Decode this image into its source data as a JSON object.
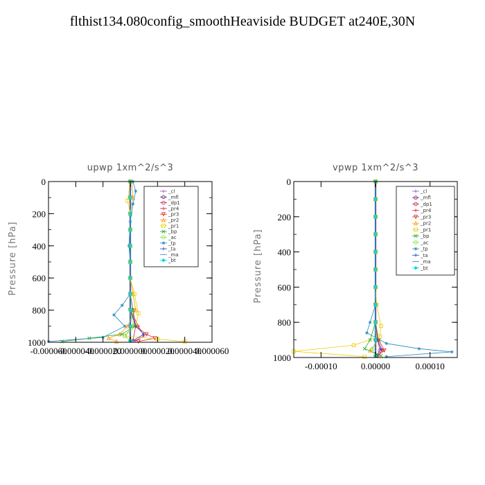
{
  "title": "flthist134.080config_smoothHeaviside  BUDGET at240E,30N",
  "chart_data": [
    {
      "type": "line",
      "title": "upwp   1xm^2/s^3",
      "ylabel": "Pressure [hPa]",
      "ylim": [
        1000,
        0
      ],
      "xlim": [
        -6e-05,
        6e-05
      ],
      "yticks": [
        0,
        200,
        400,
        600,
        800,
        1000
      ],
      "xticks": [
        -6e-05,
        -4e-05,
        -2e-05,
        0.0,
        2e-05,
        4e-05,
        6e-05
      ],
      "xticklabels": [
        "-0.000060",
        "-0.000040",
        "-0.000020",
        "0.000000",
        "0.000020",
        "0.000040",
        "0.000060"
      ],
      "legend_position": "upper-right",
      "series": [
        {
          "name": "_cl",
          "color": "#9955bb",
          "marker": "+",
          "x": [
            0,
            0,
            0,
            0,
            0,
            0,
            0,
            0,
            0,
            0,
            0
          ],
          "y": [
            0,
            100,
            200,
            300,
            400,
            500,
            600,
            700,
            800,
            900,
            990
          ]
        },
        {
          "name": "_mfl",
          "color": "#6a1a80",
          "marker": "o",
          "x": [
            0,
            0,
            0,
            0,
            0,
            0,
            0,
            0,
            0,
            0,
            0
          ],
          "y": [
            0,
            100,
            200,
            300,
            400,
            500,
            600,
            700,
            800,
            900,
            990
          ]
        },
        {
          "name": "_dp1",
          "color": "#cc2244",
          "marker": "o",
          "x": [
            0,
            0,
            0,
            0,
            0,
            0,
            0,
            0,
            2e-06,
            4e-06,
            2e-06
          ],
          "y": [
            0,
            100,
            200,
            300,
            400,
            500,
            600,
            700,
            800,
            900,
            990
          ]
        },
        {
          "name": "_pr4",
          "color": "#cc2244",
          "marker": "+",
          "x": [
            0,
            0,
            0,
            0,
            0,
            0,
            0,
            0,
            0,
            6e-06,
            1e-05,
            4e-06
          ],
          "y": [
            0,
            100,
            200,
            300,
            400,
            500,
            600,
            700,
            800,
            900,
            960,
            990
          ]
        },
        {
          "name": "_pr3",
          "color": "#dd2222",
          "marker": "v",
          "x": [
            0,
            0,
            0,
            0,
            0,
            0,
            0,
            0,
            0,
            4e-06,
            1.2e-05,
            1.8e-05,
            6e-06
          ],
          "y": [
            0,
            100,
            200,
            300,
            400,
            500,
            600,
            700,
            800,
            900,
            950,
            975,
            995
          ]
        },
        {
          "name": "_pr2",
          "color": "#ff9900",
          "marker": "^",
          "x": [
            1e-06,
            2e-06,
            0,
            0,
            0,
            0,
            0,
            2e-06,
            4e-06,
            -2e-06,
            -8e-06,
            -1.6e-05,
            -1e-05
          ],
          "y": [
            0,
            100,
            200,
            300,
            400,
            500,
            600,
            700,
            800,
            900,
            950,
            975,
            995
          ]
        },
        {
          "name": "_pr1",
          "color": "#eecc00",
          "marker": "s",
          "x": [
            0,
            -2e-06,
            0,
            0,
            0,
            0,
            0,
            3e-06,
            6e-06,
            4e-06,
            -4e-06,
            2e-05,
            4e-05
          ],
          "y": [
            0,
            120,
            200,
            300,
            400,
            500,
            600,
            700,
            820,
            900,
            960,
            980,
            995
          ]
        },
        {
          "name": "_bp",
          "color": "#22aa22",
          "marker": "x",
          "x": [
            0,
            0,
            0,
            0,
            0,
            0,
            0,
            0,
            2e-06,
            3e-06,
            -6e-06,
            -3e-05,
            -5e-05
          ],
          "y": [
            0,
            100,
            200,
            300,
            400,
            500,
            600,
            700,
            800,
            900,
            950,
            975,
            995
          ]
        },
        {
          "name": "_ac",
          "color": "#88dd44",
          "marker": "o",
          "x": [
            0,
            0,
            0,
            0,
            0,
            0,
            0,
            0,
            0,
            2e-06,
            -4e-06,
            0
          ],
          "y": [
            0,
            100,
            200,
            300,
            400,
            500,
            600,
            700,
            800,
            900,
            960,
            990
          ]
        },
        {
          "name": "_tp",
          "color": "#2288bb",
          "marker": "*",
          "x": [
            2e-06,
            4e-06,
            2e-06,
            0,
            -1e-06,
            0,
            0,
            0,
            -6e-06,
            -1.2e-05,
            -4e-06,
            -2e-05,
            -6e-05
          ],
          "y": [
            0,
            60,
            140,
            250,
            400,
            500,
            600,
            700,
            770,
            830,
            900,
            970,
            995
          ]
        },
        {
          "name": "_ta",
          "color": "#2244cc",
          "marker": "+",
          "x": [
            0,
            0,
            0,
            0,
            0,
            0,
            0,
            0,
            0,
            4e-06,
            1e-05,
            2e-06
          ],
          "y": [
            0,
            100,
            200,
            300,
            400,
            500,
            600,
            700,
            800,
            900,
            950,
            990
          ]
        },
        {
          "name": "_ma",
          "color": "#4488cc",
          "marker": "-",
          "x": [
            0,
            0,
            0,
            0,
            0,
            0,
            0,
            0,
            0,
            0,
            0
          ],
          "y": [
            0,
            100,
            200,
            300,
            400,
            500,
            600,
            700,
            800,
            900,
            990
          ]
        },
        {
          "name": "_bt",
          "color": "#00d8e8",
          "marker": "D",
          "x": [
            0,
            0,
            0,
            0,
            0,
            0,
            0,
            0,
            0,
            0,
            0
          ],
          "y": [
            0,
            100,
            200,
            300,
            400,
            500,
            600,
            700,
            800,
            900,
            990
          ]
        }
      ]
    },
    {
      "type": "line",
      "title": "vpwp   1xm^2/s^3",
      "ylabel": "Pressure [hPa]",
      "ylim": [
        1000,
        0
      ],
      "xlim": [
        -0.00015,
        0.00015
      ],
      "yticks": [
        0,
        200,
        400,
        600,
        800,
        1000
      ],
      "xticks": [
        -0.0001,
        0.0,
        0.0001
      ],
      "xticklabels": [
        "-0.00010",
        "0.00000",
        "0.00010"
      ],
      "legend_position": "upper-right",
      "series": [
        {
          "name": "_cl",
          "color": "#9955bb",
          "marker": "+",
          "x": [
            0,
            0,
            0,
            0,
            0,
            0,
            0,
            0,
            0,
            0,
            0
          ],
          "y": [
            0,
            100,
            200,
            300,
            400,
            500,
            600,
            700,
            800,
            900,
            990
          ]
        },
        {
          "name": "_mfl",
          "color": "#6a1a80",
          "marker": "o",
          "x": [
            0,
            0,
            0,
            0,
            0,
            0,
            0,
            0,
            0,
            0,
            0
          ],
          "y": [
            0,
            100,
            200,
            300,
            400,
            500,
            600,
            700,
            800,
            900,
            990
          ]
        },
        {
          "name": "_dp1",
          "color": "#cc2244",
          "marker": "o",
          "x": [
            0,
            0,
            0,
            0,
            0,
            0,
            0,
            0,
            0,
            4e-06,
            8e-06,
            2e-06
          ],
          "y": [
            0,
            100,
            200,
            300,
            400,
            500,
            600,
            700,
            800,
            900,
            960,
            990
          ]
        },
        {
          "name": "_pr4",
          "color": "#cc2244",
          "marker": "+",
          "x": [
            0,
            0,
            0,
            0,
            0,
            0,
            0,
            0,
            0,
            4e-06,
            1.2e-05,
            4e-06
          ],
          "y": [
            0,
            100,
            200,
            300,
            400,
            500,
            600,
            700,
            800,
            900,
            960,
            990
          ]
        },
        {
          "name": "_pr3",
          "color": "#dd2222",
          "marker": "v",
          "x": [
            0,
            0,
            0,
            0,
            0,
            0,
            0,
            0,
            0,
            6e-06,
            1.6e-05,
            4e-06
          ],
          "y": [
            0,
            100,
            200,
            300,
            400,
            500,
            600,
            700,
            800,
            900,
            960,
            990
          ]
        },
        {
          "name": "_pr2",
          "color": "#ff9900",
          "marker": "^",
          "x": [
            0,
            0,
            0,
            0,
            0,
            0,
            0,
            0,
            0,
            6e-06,
            -1e-05,
            4e-06
          ],
          "y": [
            0,
            100,
            200,
            300,
            400,
            500,
            600,
            700,
            800,
            900,
            960,
            990
          ]
        },
        {
          "name": "_pr1",
          "color": "#eecc00",
          "marker": "s",
          "x": [
            0,
            0,
            0,
            0,
            0,
            0,
            0,
            2e-06,
            1e-05,
            8e-06,
            -4e-05,
            -0.00015,
            -2e-05
          ],
          "y": [
            0,
            100,
            200,
            300,
            400,
            500,
            600,
            700,
            820,
            880,
            930,
            965,
            995
          ]
        },
        {
          "name": "_bp",
          "color": "#22aa22",
          "marker": "x",
          "x": [
            0,
            0,
            0,
            0,
            0,
            0,
            0,
            0,
            0,
            -1e-05,
            -2e-05,
            1e-05
          ],
          "y": [
            0,
            100,
            200,
            300,
            400,
            500,
            600,
            700,
            800,
            900,
            950,
            990
          ]
        },
        {
          "name": "_ac",
          "color": "#88dd44",
          "marker": "o",
          "x": [
            0,
            0,
            0,
            0,
            0,
            0,
            0,
            0,
            0,
            2e-06,
            -6e-06,
            0
          ],
          "y": [
            0,
            100,
            200,
            300,
            400,
            500,
            600,
            700,
            800,
            900,
            950,
            990
          ]
        },
        {
          "name": "_tp",
          "color": "#2288bb",
          "marker": "*",
          "x": [
            0,
            0,
            0,
            0,
            0,
            0,
            0,
            0,
            -1e-05,
            -1.6e-05,
            2e-05,
            8e-05,
            0.00014,
            2e-05
          ],
          "y": [
            0,
            100,
            200,
            300,
            400,
            500,
            600,
            700,
            800,
            860,
            920,
            950,
            968,
            995
          ]
        },
        {
          "name": "_ta",
          "color": "#2244cc",
          "marker": "+",
          "x": [
            0,
            0,
            0,
            0,
            0,
            0,
            0,
            0,
            0,
            4e-06,
            1e-05,
            2e-06
          ],
          "y": [
            0,
            100,
            200,
            300,
            400,
            500,
            600,
            700,
            800,
            900,
            950,
            990
          ]
        },
        {
          "name": "_ma",
          "color": "#4488cc",
          "marker": "-",
          "x": [
            0,
            0,
            0,
            0,
            0,
            0,
            0,
            0,
            0,
            0,
            0
          ],
          "y": [
            0,
            100,
            200,
            300,
            400,
            500,
            600,
            700,
            800,
            900,
            990
          ]
        },
        {
          "name": "_bt",
          "color": "#00d8e8",
          "marker": "D",
          "x": [
            0,
            0,
            0,
            0,
            0,
            0,
            0,
            0,
            0,
            0,
            0
          ],
          "y": [
            0,
            100,
            200,
            300,
            400,
            500,
            600,
            700,
            800,
            900,
            990
          ]
        }
      ]
    }
  ]
}
